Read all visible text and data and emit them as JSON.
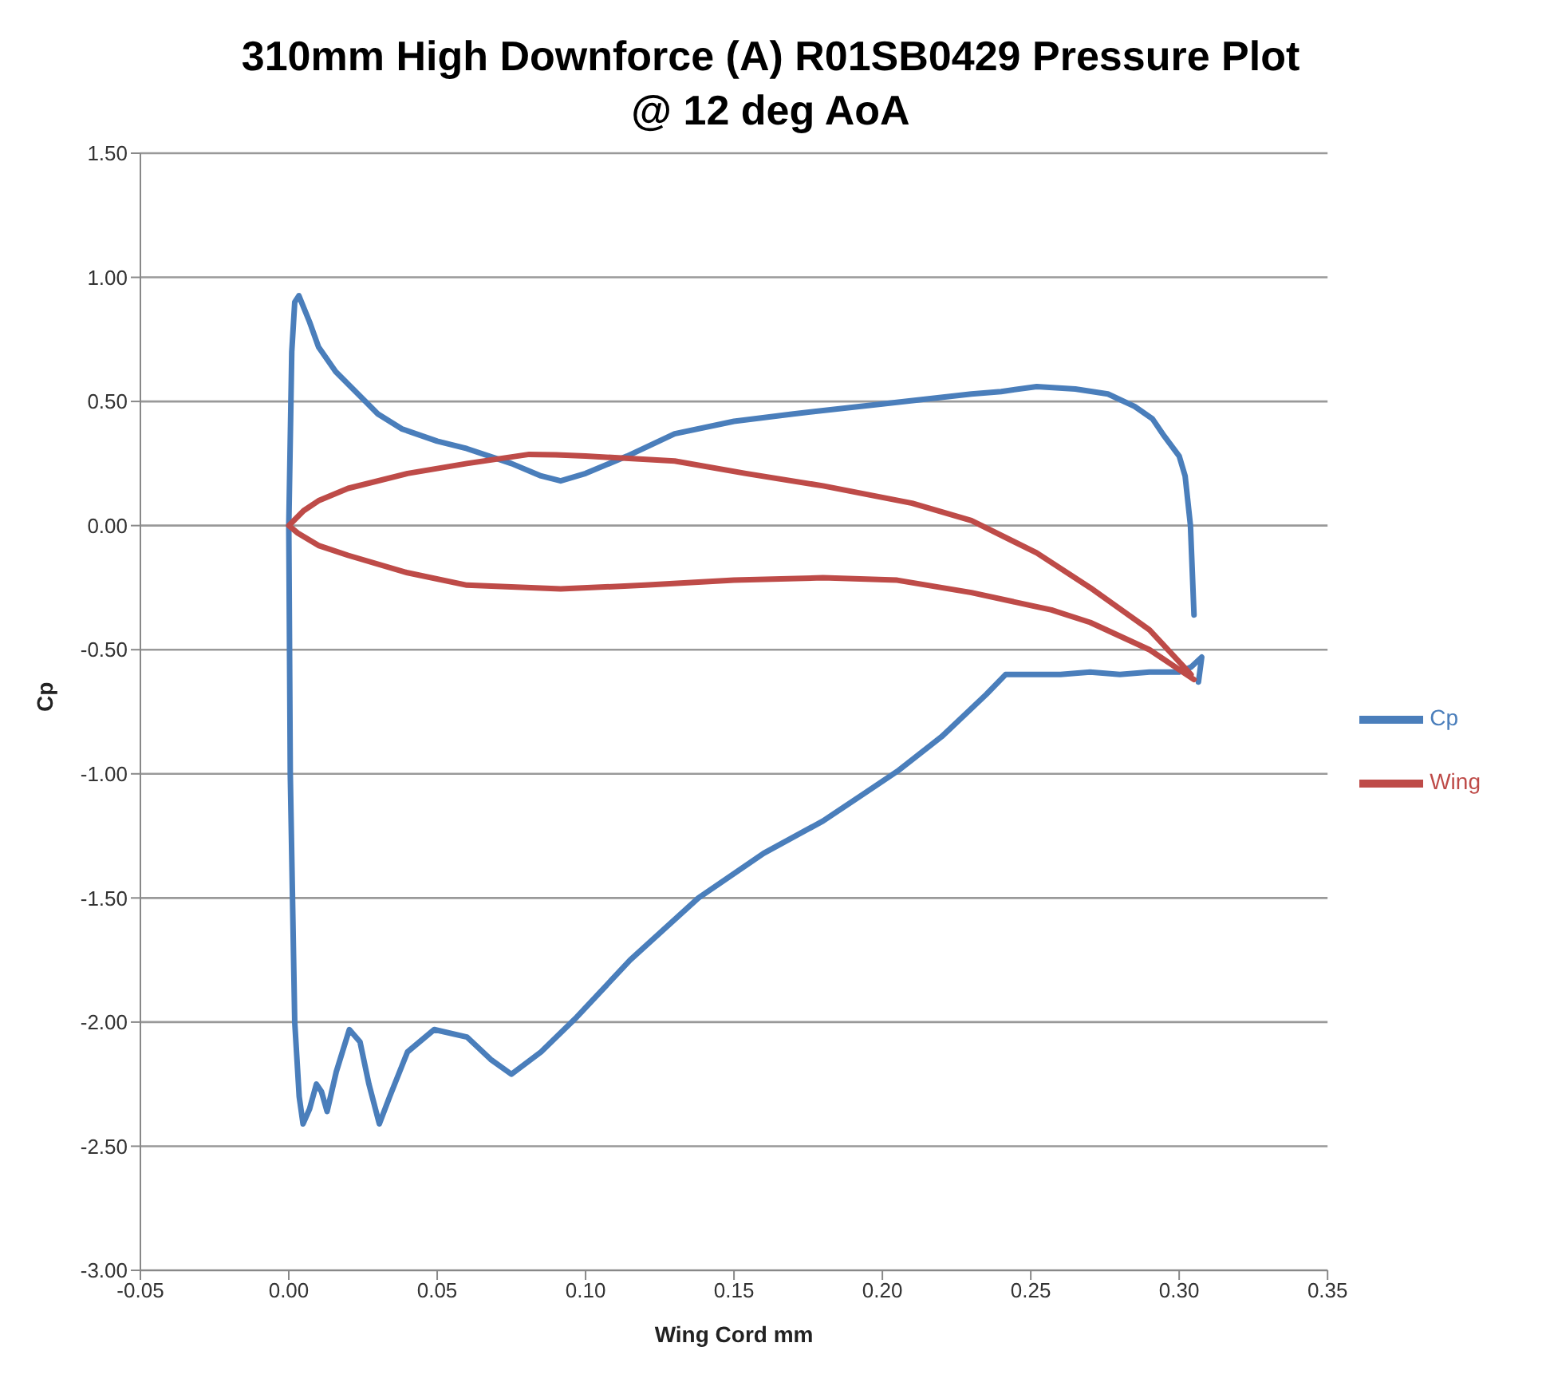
{
  "chart_data": {
    "type": "line",
    "title": "310mm High Downforce (A) R01SB0429 Pressure Plot\n@ 12 deg AoA",
    "xlabel": "Wing Cord mm",
    "ylabel": "Cp",
    "xlim": [
      -0.05,
      0.35
    ],
    "xticks": [
      {
        "value": -0.05,
        "label": "-0.05"
      },
      {
        "value": 0,
        "label": "0.00"
      },
      {
        "value": 0.05,
        "label": "0.05"
      },
      {
        "value": 0.1,
        "label": "0.10"
      },
      {
        "value": 0.15,
        "label": "0.15"
      },
      {
        "value": 0.2,
        "label": "0.20"
      },
      {
        "value": 0.25,
        "label": "0.25"
      },
      {
        "value": 0.3,
        "label": "0.30"
      },
      {
        "value": 0.35,
        "label": "0.35"
      }
    ],
    "ylim": [
      -3,
      1.5
    ],
    "yticks": [
      {
        "value": 1.5,
        "label": "1.50"
      },
      {
        "value": 1,
        "label": "1.00"
      },
      {
        "value": 0.5,
        "label": "0.50"
      },
      {
        "value": 0,
        "label": "0.00"
      },
      {
        "value": -0.5,
        "label": "-0.50"
      },
      {
        "value": -1,
        "label": "-1.00"
      },
      {
        "value": -1.5,
        "label": "-1.50"
      },
      {
        "value": -2,
        "label": "-2.00"
      },
      {
        "value": -2.5,
        "label": "-2.50"
      },
      {
        "value": -3,
        "label": "-3.00"
      }
    ],
    "grid": "y",
    "legend": "right",
    "marker": "none",
    "line_style": "solid",
    "series": [
      {
        "name": "Cp",
        "color": "#4a7ebb",
        "x": [
          0.305,
          0.3038,
          0.302,
          0.3,
          0.295,
          0.291,
          0.285,
          0.276,
          0.265,
          0.252,
          0.24,
          0.23,
          0.2,
          0.17,
          0.15,
          0.13,
          0.114,
          0.1,
          0.0916,
          0.085,
          0.075,
          0.06,
          0.05,
          0.038,
          0.03,
          0.0158,
          0.01,
          0.007,
          0.0034,
          0.002,
          0.001,
          0,
          0.0005,
          0.002,
          0.0035,
          0.0048,
          0.007,
          0.0093,
          0.011,
          0.0129,
          0.016,
          0.0204,
          0.024,
          0.027,
          0.0305,
          0.034,
          0.04,
          0.049,
          0.06,
          0.068,
          0.075,
          0.085,
          0.097,
          0.115,
          0.138,
          0.16,
          0.18,
          0.195,
          0.205,
          0.22,
          0.235,
          0.2415,
          0.25,
          0.26,
          0.27,
          0.28,
          0.29,
          0.3,
          0.304,
          0.3076,
          0.3065
        ],
        "values": [
          -0.36,
          0,
          0.2,
          0.28,
          0.36,
          0.43,
          0.48,
          0.53,
          0.55,
          0.56,
          0.54,
          0.53,
          0.49,
          0.45,
          0.42,
          0.37,
          0.28,
          0.21,
          0.18,
          0.2,
          0.25,
          0.31,
          0.34,
          0.39,
          0.45,
          0.62,
          0.72,
          0.82,
          0.926,
          0.9,
          0.7,
          0,
          -1,
          -2,
          -2.3,
          -2.41,
          -2.35,
          -2.25,
          -2.28,
          -2.36,
          -2.2,
          -2.03,
          -2.08,
          -2.25,
          -2.41,
          -2.3,
          -2.12,
          -2.03,
          -2.06,
          -2.15,
          -2.21,
          -2.12,
          -1.98,
          -1.75,
          -1.5,
          -1.32,
          -1.19,
          -1.07,
          -0.99,
          -0.85,
          -0.68,
          -0.6,
          -0.6,
          -0.6,
          -0.59,
          -0.6,
          -0.59,
          -0.59,
          -0.57,
          -0.53,
          -0.63
        ]
      },
      {
        "name": "Wing",
        "color": "#be4b48",
        "x": [
          0.305,
          0.29,
          0.27,
          0.257,
          0.23,
          0.205,
          0.18,
          0.15,
          0.12,
          0.0916,
          0.06,
          0.04,
          0.02,
          0.01,
          0.003,
          0,
          0.005,
          0.01,
          0.02,
          0.04,
          0.06,
          0.081,
          0.09,
          0.1,
          0.13,
          0.154,
          0.18,
          0.21,
          0.23,
          0.252,
          0.27,
          0.29,
          0.304
        ],
        "values": [
          -0.62,
          -0.5,
          -0.39,
          -0.34,
          -0.27,
          -0.22,
          -0.21,
          -0.22,
          -0.24,
          -0.255,
          -0.24,
          -0.19,
          -0.12,
          -0.08,
          -0.03,
          0,
          0.06,
          0.1,
          0.15,
          0.21,
          0.25,
          0.287,
          0.285,
          0.28,
          0.26,
          0.21,
          0.16,
          0.09,
          0.02,
          -0.11,
          -0.25,
          -0.42,
          -0.6
        ]
      }
    ]
  }
}
